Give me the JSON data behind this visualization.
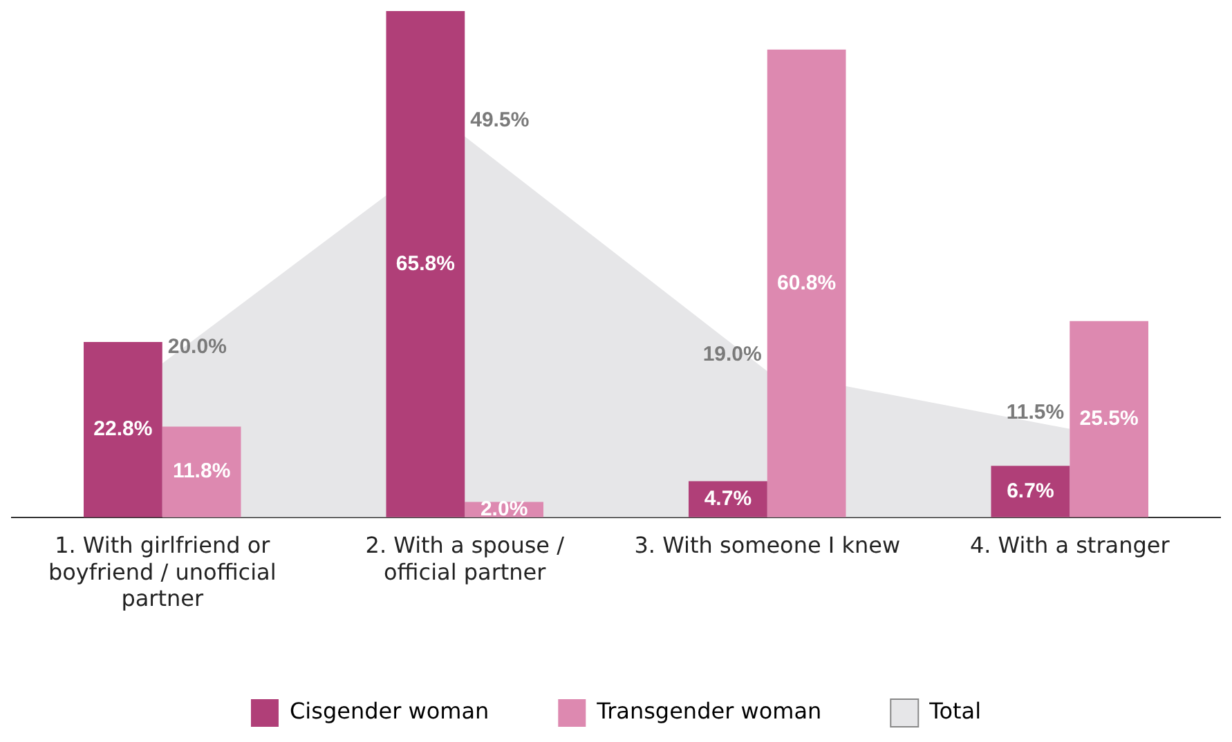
{
  "chart_data": {
    "type": "bar",
    "categories": [
      "1. With girlfriend or boyfriend / unofficial partner",
      "2. With a spouse / official partner",
      "3. With someone I knew",
      "4. With a stranger"
    ],
    "series": [
      {
        "name": "Total",
        "type": "area",
        "color": "#e6e6e8",
        "values": [
          20.0,
          49.5,
          19.0,
          11.5
        ],
        "value_labels": [
          "20.0%",
          "49.5%",
          "19.0%",
          "11.5%"
        ]
      },
      {
        "name": "Cisgender woman",
        "color": "#b03f78",
        "values": [
          22.8,
          65.8,
          4.7,
          6.7
        ],
        "value_labels": [
          "22.8%",
          "65.8%",
          "4.7%",
          "6.7%"
        ]
      },
      {
        "name": "Transgender woman",
        "color": "#dd89b0",
        "values": [
          11.8,
          2.0,
          60.8,
          25.5
        ],
        "value_labels": [
          "11.8%",
          "2.0%",
          "60.8%",
          "25.5%"
        ]
      }
    ],
    "grid": false,
    "legend": "bottom"
  }
}
